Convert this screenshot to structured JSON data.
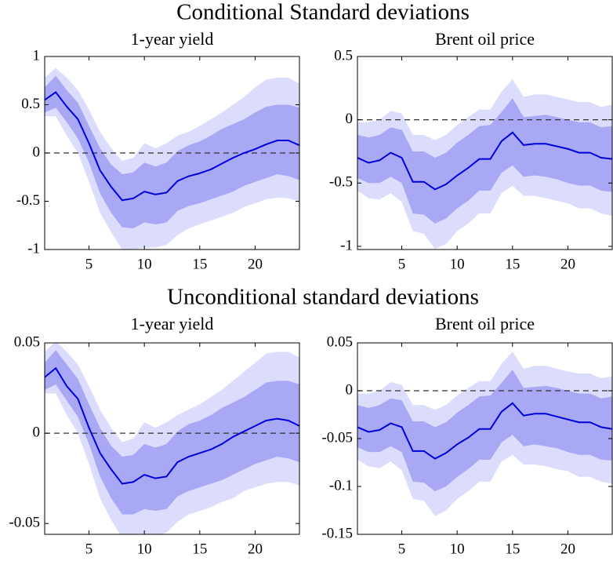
{
  "figure_titles": [
    "Conditional Standard deviations",
    "Unconditional standard deviations"
  ],
  "chart_data": [
    {
      "type": "line",
      "title": "1-year yield",
      "x": [
        1,
        2,
        3,
        4,
        5,
        6,
        7,
        8,
        9,
        10,
        11,
        12,
        13,
        14,
        15,
        16,
        17,
        18,
        19,
        20,
        21,
        22,
        23,
        24
      ],
      "values": [
        0.55,
        0.63,
        0.48,
        0.35,
        0.1,
        -0.18,
        -0.35,
        -0.49,
        -0.47,
        -0.4,
        -0.43,
        -0.41,
        -0.29,
        -0.24,
        -0.21,
        -0.17,
        -0.11,
        -0.05,
        0.0,
        0.04,
        0.09,
        0.13,
        0.13,
        0.08
      ],
      "color": "#0000dd",
      "bands": [
        {
          "color": "#dcdcfc",
          "upper": [
            0.78,
            0.88,
            0.78,
            0.65,
            0.45,
            0.22,
            0.05,
            -0.08,
            -0.05,
            0.1,
            0.05,
            0.1,
            0.18,
            0.22,
            0.28,
            0.35,
            0.42,
            0.5,
            0.58,
            0.68,
            0.76,
            0.78,
            0.78,
            0.72
          ],
          "lower": [
            0.38,
            0.38,
            0.18,
            0.0,
            -0.3,
            -0.62,
            -0.82,
            -1.0,
            -1.0,
            -0.98,
            -0.98,
            -0.95,
            -0.85,
            -0.78,
            -0.74,
            -0.7,
            -0.66,
            -0.62,
            -0.56,
            -0.52,
            -0.48,
            -0.46,
            -0.47,
            -0.5
          ]
        },
        {
          "color": "#a8a8f5",
          "upper": [
            0.68,
            0.8,
            0.65,
            0.52,
            0.28,
            0.05,
            -0.12,
            -0.22,
            -0.2,
            -0.1,
            -0.14,
            -0.1,
            0.02,
            0.08,
            0.12,
            0.18,
            0.25,
            0.3,
            0.35,
            0.42,
            0.48,
            0.5,
            0.5,
            0.47
          ],
          "lower": [
            0.42,
            0.47,
            0.32,
            0.15,
            -0.1,
            -0.42,
            -0.62,
            -0.77,
            -0.78,
            -0.72,
            -0.74,
            -0.72,
            -0.6,
            -0.55,
            -0.52,
            -0.48,
            -0.44,
            -0.4,
            -0.34,
            -0.3,
            -0.26,
            -0.22,
            -0.24,
            -0.28
          ]
        }
      ],
      "xlim": [
        1,
        24
      ],
      "ylim": [
        -1,
        1
      ],
      "xticks": [
        5,
        10,
        15,
        20
      ],
      "yticks": [
        -1,
        -0.5,
        0,
        0.5,
        1
      ],
      "zero_line": true
    },
    {
      "type": "line",
      "title": "Brent oil price",
      "x": [
        1,
        2,
        3,
        4,
        5,
        6,
        7,
        8,
        9,
        10,
        11,
        12,
        13,
        14,
        15,
        16,
        17,
        18,
        19,
        20,
        21,
        22,
        23,
        24
      ],
      "values": [
        -0.3,
        -0.34,
        -0.32,
        -0.26,
        -0.3,
        -0.49,
        -0.49,
        -0.55,
        -0.51,
        -0.44,
        -0.38,
        -0.31,
        -0.31,
        -0.17,
        -0.1,
        -0.2,
        -0.19,
        -0.19,
        -0.21,
        -0.23,
        -0.26,
        -0.26,
        -0.3,
        -0.31
      ],
      "color": "#0000dd",
      "bands": [
        {
          "color": "#dcdcfc",
          "upper": [
            -0.02,
            -0.02,
            0.0,
            0.07,
            0.05,
            -0.12,
            -0.12,
            -0.16,
            -0.12,
            -0.04,
            0.02,
            0.08,
            0.08,
            0.22,
            0.32,
            0.18,
            0.2,
            0.2,
            0.18,
            0.16,
            0.14,
            0.14,
            0.1,
            0.12
          ],
          "lower": [
            -0.56,
            -0.62,
            -0.63,
            -0.58,
            -0.65,
            -0.88,
            -0.9,
            -1.02,
            -0.98,
            -0.88,
            -0.82,
            -0.74,
            -0.74,
            -0.58,
            -0.52,
            -0.6,
            -0.6,
            -0.62,
            -0.64,
            -0.66,
            -0.7,
            -0.7,
            -0.74,
            -0.76
          ]
        },
        {
          "color": "#a8a8f5",
          "upper": [
            -0.12,
            -0.14,
            -0.12,
            -0.06,
            -0.08,
            -0.25,
            -0.25,
            -0.3,
            -0.26,
            -0.18,
            -0.12,
            -0.05,
            -0.04,
            0.06,
            0.17,
            0.02,
            0.03,
            0.04,
            0.02,
            0.0,
            -0.02,
            -0.02,
            -0.06,
            -0.05
          ],
          "lower": [
            -0.46,
            -0.5,
            -0.5,
            -0.45,
            -0.5,
            -0.74,
            -0.75,
            -0.82,
            -0.78,
            -0.7,
            -0.64,
            -0.56,
            -0.56,
            -0.42,
            -0.36,
            -0.45,
            -0.44,
            -0.45,
            -0.47,
            -0.5,
            -0.52,
            -0.52,
            -0.56,
            -0.57
          ]
        }
      ],
      "xlim": [
        1,
        24
      ],
      "ylim": [
        -1.025,
        0.5
      ],
      "xticks": [
        5,
        10,
        15,
        20
      ],
      "yticks": [
        -1,
        -0.5,
        0,
        0.5
      ],
      "zero_line": true
    },
    {
      "type": "line",
      "title": "1-year yield",
      "x": [
        1,
        2,
        3,
        4,
        5,
        6,
        7,
        8,
        9,
        10,
        11,
        12,
        13,
        14,
        15,
        16,
        17,
        18,
        19,
        20,
        21,
        22,
        23,
        24
      ],
      "values": [
        0.031,
        0.036,
        0.026,
        0.019,
        0.003,
        -0.011,
        -0.02,
        -0.028,
        -0.027,
        -0.023,
        -0.025,
        -0.024,
        -0.016,
        -0.013,
        -0.011,
        -0.009,
        -0.006,
        -0.002,
        0.001,
        0.004,
        0.007,
        0.008,
        0.007,
        0.004
      ],
      "color": "#0000dd",
      "bands": [
        {
          "color": "#dcdcfc",
          "upper": [
            0.045,
            0.051,
            0.045,
            0.038,
            0.026,
            0.013,
            0.003,
            -0.005,
            -0.003,
            0.006,
            0.003,
            0.006,
            0.01,
            0.013,
            0.016,
            0.02,
            0.024,
            0.029,
            0.034,
            0.039,
            0.044,
            0.045,
            0.045,
            0.042
          ],
          "lower": [
            0.022,
            0.022,
            0.01,
            0.0,
            -0.017,
            -0.036,
            -0.048,
            -0.058,
            -0.058,
            -0.057,
            -0.057,
            -0.055,
            -0.049,
            -0.045,
            -0.043,
            -0.041,
            -0.038,
            -0.036,
            -0.032,
            -0.03,
            -0.028,
            -0.027,
            -0.027,
            -0.029
          ]
        },
        {
          "color": "#a8a8f5",
          "upper": [
            0.039,
            0.046,
            0.038,
            0.03,
            0.016,
            0.003,
            -0.007,
            -0.013,
            -0.012,
            -0.006,
            -0.008,
            -0.006,
            0.001,
            0.005,
            0.007,
            0.01,
            0.014,
            0.017,
            0.02,
            0.024,
            0.028,
            0.029,
            0.029,
            0.027
          ],
          "lower": [
            0.024,
            0.027,
            0.018,
            0.009,
            -0.006,
            -0.024,
            -0.036,
            -0.045,
            -0.045,
            -0.042,
            -0.043,
            -0.042,
            -0.035,
            -0.032,
            -0.03,
            -0.028,
            -0.026,
            -0.023,
            -0.02,
            -0.017,
            -0.015,
            -0.013,
            -0.014,
            -0.016
          ]
        }
      ],
      "xlim": [
        1,
        24
      ],
      "ylim": [
        -0.056,
        0.05
      ],
      "xticks": [
        5,
        10,
        15,
        20
      ],
      "yticks": [
        -0.05,
        0,
        0.05
      ],
      "zero_line": true
    },
    {
      "type": "line",
      "title": "Brent oil price",
      "x": [
        1,
        2,
        3,
        4,
        5,
        6,
        7,
        8,
        9,
        10,
        11,
        12,
        13,
        14,
        15,
        16,
        17,
        18,
        19,
        20,
        21,
        22,
        23,
        24
      ],
      "values": [
        -0.038,
        -0.043,
        -0.041,
        -0.034,
        -0.038,
        -0.063,
        -0.063,
        -0.071,
        -0.065,
        -0.056,
        -0.049,
        -0.04,
        -0.04,
        -0.022,
        -0.013,
        -0.026,
        -0.024,
        -0.024,
        -0.027,
        -0.03,
        -0.033,
        -0.033,
        -0.038,
        -0.04
      ],
      "color": "#0000dd",
      "bands": [
        {
          "color": "#dcdcfc",
          "upper": [
            -0.003,
            -0.003,
            0.0,
            0.009,
            0.006,
            -0.015,
            -0.015,
            -0.02,
            -0.015,
            -0.005,
            0.003,
            0.01,
            0.01,
            0.028,
            0.041,
            0.023,
            0.026,
            0.026,
            0.023,
            0.02,
            0.018,
            0.018,
            0.013,
            0.015
          ],
          "lower": [
            -0.072,
            -0.079,
            -0.081,
            -0.074,
            -0.083,
            -0.113,
            -0.115,
            -0.131,
            -0.125,
            -0.113,
            -0.105,
            -0.095,
            -0.095,
            -0.074,
            -0.067,
            -0.077,
            -0.077,
            -0.079,
            -0.082,
            -0.084,
            -0.09,
            -0.09,
            -0.095,
            -0.097
          ]
        },
        {
          "color": "#a8a8f5",
          "upper": [
            -0.015,
            -0.018,
            -0.015,
            -0.008,
            -0.01,
            -0.032,
            -0.032,
            -0.038,
            -0.033,
            -0.023,
            -0.015,
            -0.006,
            -0.005,
            0.008,
            0.022,
            0.003,
            0.004,
            0.005,
            0.003,
            0.0,
            -0.003,
            -0.003,
            -0.008,
            -0.006
          ],
          "lower": [
            -0.059,
            -0.064,
            -0.064,
            -0.058,
            -0.064,
            -0.095,
            -0.096,
            -0.105,
            -0.1,
            -0.09,
            -0.082,
            -0.072,
            -0.072,
            -0.054,
            -0.046,
            -0.058,
            -0.056,
            -0.058,
            -0.06,
            -0.064,
            -0.067,
            -0.067,
            -0.072,
            -0.073
          ]
        }
      ],
      "xlim": [
        1,
        24
      ],
      "ylim": [
        -0.15,
        0.05
      ],
      "xticks": [
        5,
        10,
        15,
        20
      ],
      "yticks": [
        -0.15,
        -0.1,
        -0.05,
        0,
        0.05
      ],
      "zero_line": true
    }
  ]
}
